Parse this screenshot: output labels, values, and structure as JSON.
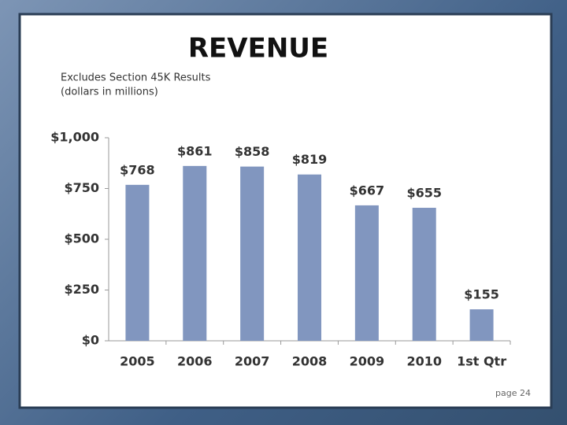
{
  "chart_data": {
    "type": "bar",
    "title": "REVENUE",
    "subtitle": [
      "Excludes Section 45K Results",
      "(dollars in millions)"
    ],
    "categories": [
      "2005",
      "2006",
      "2007",
      "2008",
      "2009",
      "2010",
      "1st Qtr"
    ],
    "values": [
      768,
      861,
      858,
      819,
      667,
      655,
      155
    ],
    "value_labels": [
      "$768",
      "$861",
      "$858",
      "$819",
      "$667",
      "$655",
      "$155"
    ],
    "color": "#8196bf",
    "ylim": [
      0,
      1000
    ],
    "yticks": [
      {
        "value": 0,
        "label": "$0"
      },
      {
        "value": 250,
        "label": "$250"
      },
      {
        "value": 500,
        "label": "$500"
      },
      {
        "value": 750,
        "label": "$750"
      },
      {
        "value": 1000,
        "label": "$1,000"
      }
    ],
    "grid": false
  },
  "footer": "page 24"
}
